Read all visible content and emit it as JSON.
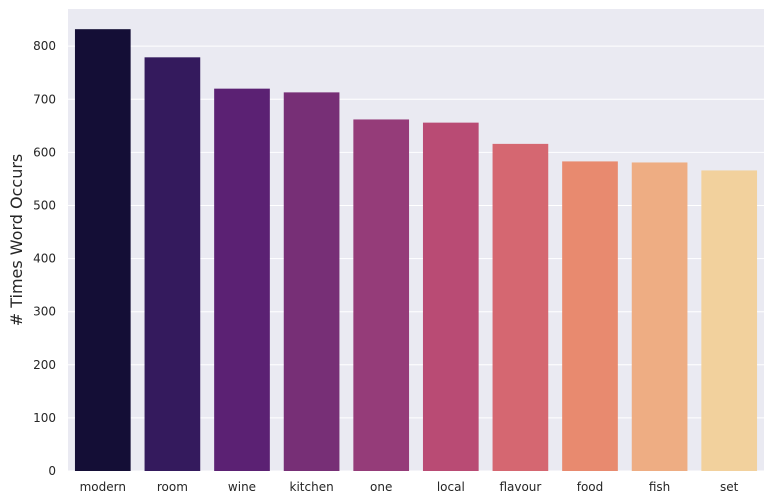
{
  "chart_data": {
    "type": "bar",
    "categories": [
      "modern",
      "room",
      "wine",
      "kitchen",
      "one",
      "local",
      "flavour",
      "food",
      "fish",
      "set"
    ],
    "values": [
      832,
      779,
      720,
      713,
      662,
      656,
      616,
      583,
      581,
      566
    ],
    "colors": [
      "#140e36",
      "#341a5d",
      "#5b2173",
      "#772f76",
      "#953c79",
      "#b94b74",
      "#d56771",
      "#e88a6f",
      "#eead83",
      "#f2d19d"
    ],
    "xlabel": "",
    "ylabel": "# Times Word Occurs",
    "ylim": [
      0,
      870
    ],
    "yticks": [
      0,
      100,
      200,
      300,
      400,
      500,
      600,
      700,
      800
    ],
    "grid": true,
    "background": "#eaeaf2",
    "legend": "none"
  }
}
